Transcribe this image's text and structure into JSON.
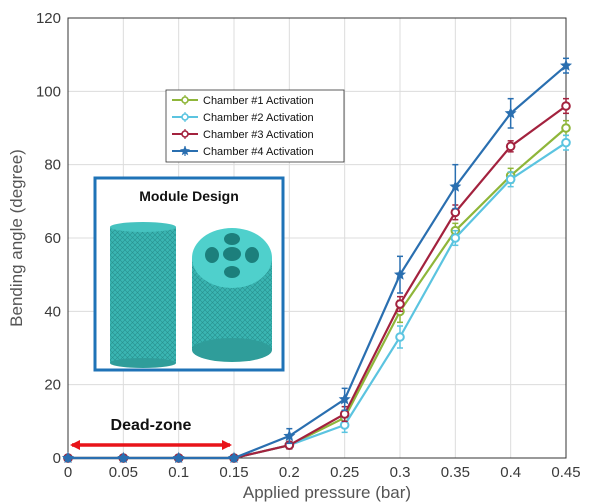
{
  "chart_data": {
    "type": "line",
    "xlabel": "Applied pressure (bar)",
    "ylabel": "Bending angle (degree)",
    "x": [
      0,
      0.05,
      0.1,
      0.15,
      0.2,
      0.25,
      0.3,
      0.35,
      0.4,
      0.45
    ],
    "x_tick_labels": [
      "0",
      "0.05",
      "0.1",
      "0.15",
      "0.2",
      "0.25",
      "0.3",
      "0.35",
      "0.4",
      "0.45"
    ],
    "y_ticks": [
      0,
      20,
      40,
      60,
      80,
      100,
      120
    ],
    "xlim": [
      0,
      0.45
    ],
    "ylim": [
      0,
      120
    ],
    "grid": true,
    "legend_position": "top-center",
    "series": [
      {
        "name": "Chamber #1 Activation",
        "color": "#8fb63a",
        "marker": "o",
        "values": [
          0,
          0,
          0,
          0,
          3.5,
          11,
          40,
          62,
          77,
          90
        ],
        "errors": [
          0,
          0,
          0,
          0,
          1,
          2,
          3,
          2,
          2,
          2
        ]
      },
      {
        "name": "Chamber #2 Activation",
        "color": "#5bc4e0",
        "marker": "o",
        "values": [
          0,
          0,
          0,
          0,
          3.5,
          9,
          33,
          60,
          76,
          86
        ],
        "errors": [
          0,
          0,
          0,
          0,
          1,
          2,
          3,
          2,
          2,
          2
        ]
      },
      {
        "name": "Chamber #3 Activation",
        "color": "#a3223e",
        "marker": "o",
        "values": [
          0,
          0,
          0,
          0,
          3.5,
          12,
          42,
          67,
          85,
          96
        ],
        "errors": [
          0,
          0,
          0,
          0,
          1,
          2,
          2,
          2,
          1.5,
          2
        ]
      },
      {
        "name": "Chamber #4 Activation",
        "color": "#2a6fb0",
        "marker": "star",
        "values": [
          0,
          0,
          0,
          0,
          6,
          16,
          50,
          74,
          94,
          107
        ],
        "errors": [
          0,
          0,
          0,
          0,
          2,
          3,
          5,
          6,
          4,
          2
        ]
      }
    ],
    "annotations": [
      {
        "text": "Dead-zone",
        "type": "double-arrow",
        "from_x": 0,
        "to_x": 0.15,
        "y": 4,
        "color": "#e8141a"
      },
      {
        "text": "Module Design",
        "type": "inset-image"
      }
    ]
  }
}
